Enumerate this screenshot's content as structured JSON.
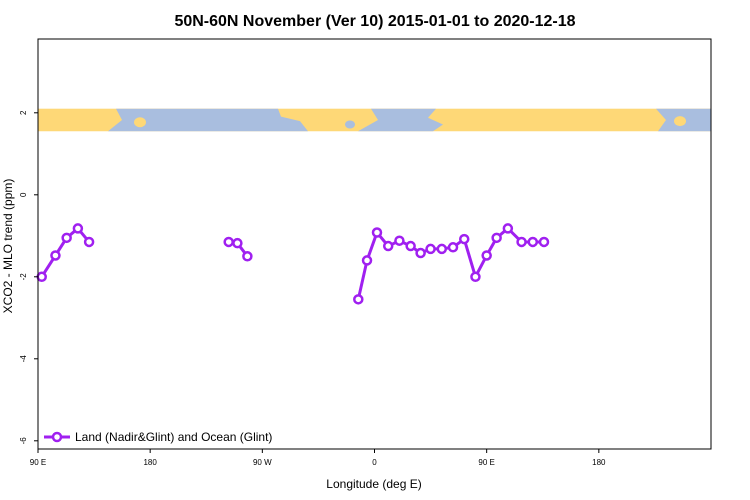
{
  "chart_data": {
    "type": "line",
    "title": "50N-60N November (Ver 10)   2015-01-01 to 2020-12-18",
    "xlabel": "Longitude (deg E)",
    "ylabel": "XCO2 - MLO trend (ppm)",
    "xlim": [
      90,
      450
    ],
    "ylim": [
      -6.2,
      3.8
    ],
    "x_ticks": [
      {
        "value": 90,
        "label": "90 E"
      },
      {
        "value": 180,
        "label": "180"
      },
      {
        "value": 270,
        "label": "90 W"
      },
      {
        "value": 360,
        "label": "0"
      },
      {
        "value": 450,
        "label": "90 E"
      },
      {
        "value": 540,
        "label": "180"
      }
    ],
    "y_ticks": [
      {
        "value": 2,
        "label": "2"
      },
      {
        "value": 0,
        "label": "0"
      },
      {
        "value": -2,
        "label": "-2"
      },
      {
        "value": -4,
        "label": "-4"
      },
      {
        "value": -6,
        "label": "-6"
      }
    ],
    "map_band": {
      "ymin": 1.55,
      "ymax": 2.1,
      "ocean_color": "#a9bedf",
      "land_color": "#fed877"
    },
    "legend": {
      "position": "bottom-left"
    },
    "series": [
      {
        "name": "Land (Nadir&Glint) and Ocean (Glint)",
        "color": "#a020f0",
        "segments": [
          {
            "x": [
              93,
              104,
              113,
              122,
              131
            ],
            "y": [
              -2.0,
              -1.48,
              -1.05,
              -0.82,
              -1.15
            ]
          },
          {
            "x": [
              243,
              250,
              258
            ],
            "y": [
              -1.15,
              -1.18,
              -1.5
            ]
          },
          {
            "x": [
              347,
              354,
              362,
              371,
              380,
              389,
              397,
              405,
              414,
              423,
              432,
              441,
              450,
              458,
              467,
              478,
              487,
              496
            ],
            "y": [
              -2.55,
              -1.6,
              -0.92,
              -1.25,
              -1.12,
              -1.25,
              -1.42,
              -1.32,
              -1.32,
              -1.28,
              -1.08,
              -2.0,
              -1.48,
              -1.05,
              -0.82,
              -1.15,
              -1.15,
              -1.15
            ]
          }
        ]
      }
    ]
  }
}
